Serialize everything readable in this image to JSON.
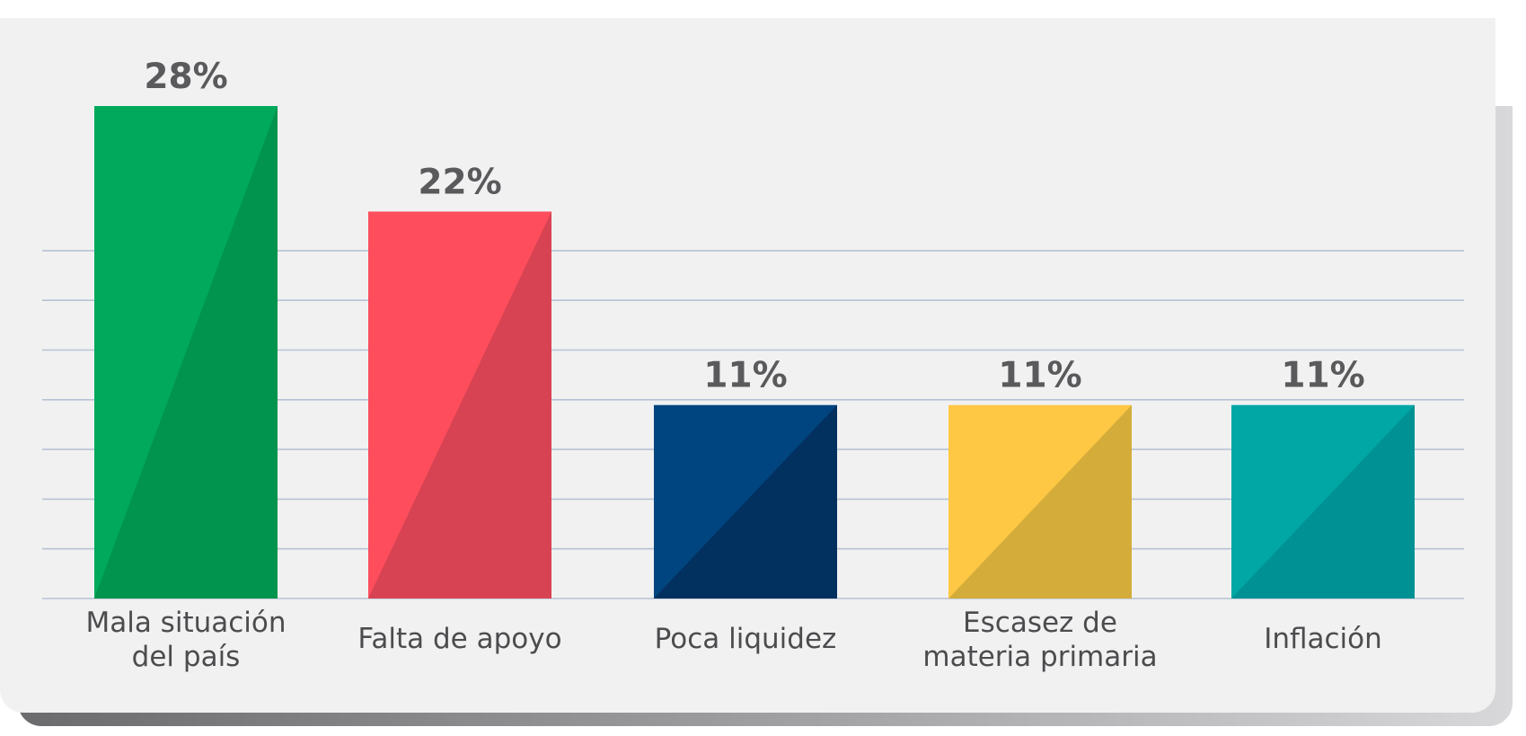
{
  "chart_data": {
    "type": "bar",
    "categories": [
      [
        "Mala situación",
        "del país"
      ],
      [
        "Falta de apoyo"
      ],
      [
        "Poca liquidez"
      ],
      [
        "Escasez de",
        "materia primaria"
      ],
      [
        "Inflación"
      ]
    ],
    "values": [
      28,
      22,
      11,
      11,
      11
    ],
    "value_labels": [
      "28%",
      "22%",
      "11%",
      "11%",
      "11%"
    ],
    "colors": [
      "#00a95c",
      "#fe4d5c",
      "#00457f",
      "#ffc844",
      "#00a7a4"
    ],
    "shade_colors": [
      "#00944e",
      "#d74352",
      "#02305f",
      "#d4ac3a",
      "#009194"
    ],
    "ylim": [
      0,
      28
    ],
    "grid": true
  }
}
